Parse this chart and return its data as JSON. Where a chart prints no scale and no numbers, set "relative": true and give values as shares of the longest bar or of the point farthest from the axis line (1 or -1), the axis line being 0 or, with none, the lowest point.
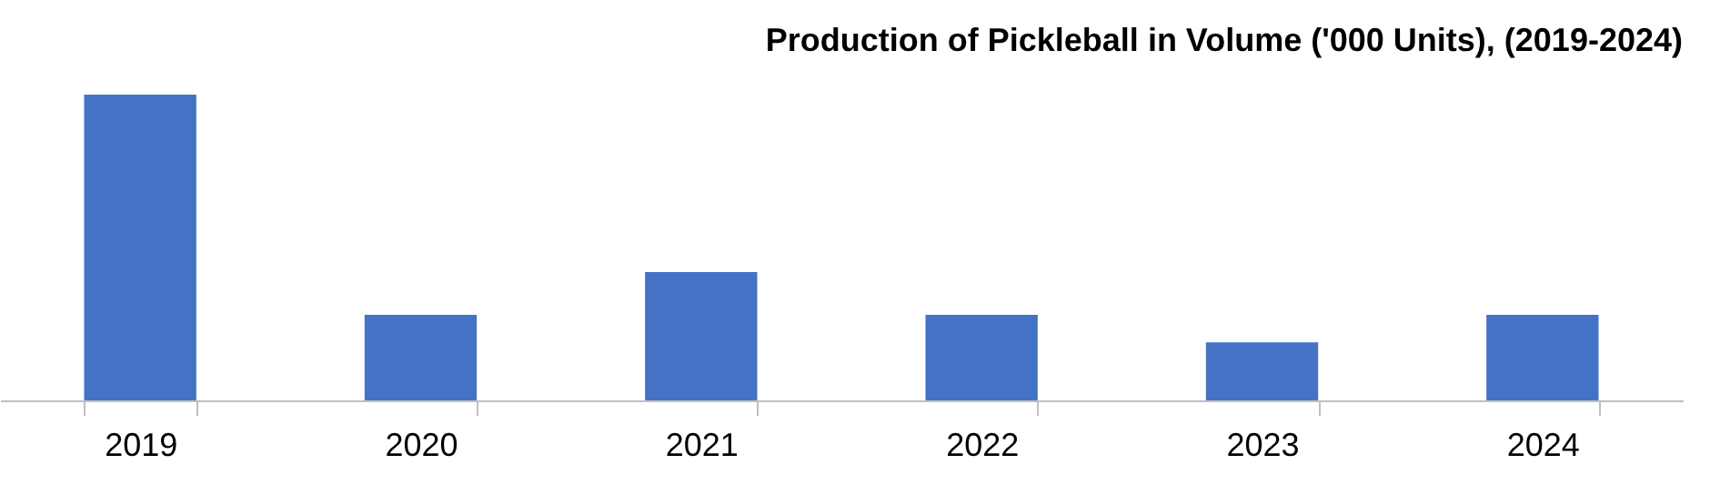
{
  "chart_data": {
    "type": "bar",
    "title": "Production of Pickleball in Volume ('000 Units), (2019-2024)",
    "categories": [
      "2019",
      "2020",
      "2021",
      "2022",
      "2023",
      "2024"
    ],
    "values": [
      1,
      0.28,
      0.42,
      0.28,
      0.19,
      0.28
    ],
    "color": "#4472c4",
    "relative": true
  }
}
